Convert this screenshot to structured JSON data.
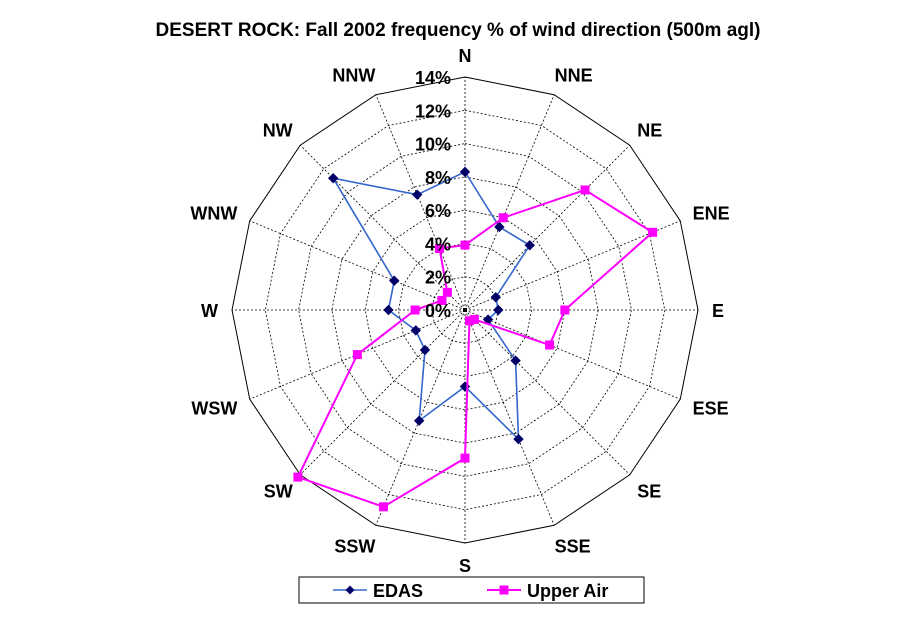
{
  "chart_data": {
    "type": "radar",
    "title": "DESERT ROCK: Fall 2002 frequency % of wind direction (500m agl)",
    "directions": [
      "N",
      "NNE",
      "NE",
      "ENE",
      "E",
      "ESE",
      "SE",
      "SSE",
      "S",
      "SSW",
      "SW",
      "WSW",
      "W",
      "WNW",
      "NW",
      "NNW"
    ],
    "r_ticks": [
      "0%",
      "2%",
      "4%",
      "6%",
      "8%",
      "10%",
      "12%",
      "14%"
    ],
    "r_range": [
      0,
      14
    ],
    "grid": "dashed",
    "legend_position": "bottom",
    "series": [
      {
        "name": "EDAS",
        "color": "#3366cc",
        "marker": "diamond",
        "marker_color": "#000066",
        "values": [
          8.3,
          5.4,
          5.5,
          2.0,
          2.0,
          1.5,
          4.3,
          8.4,
          4.6,
          7.2,
          3.4,
          3.2,
          4.6,
          4.6,
          11.2,
          7.5
        ]
      },
      {
        "name": "Upper Air",
        "color": "#ff00ff",
        "marker": "square",
        "marker_color": "#ff00ff",
        "values": [
          3.9,
          6.0,
          10.2,
          12.2,
          6.0,
          5.5,
          0.8,
          0.7,
          8.9,
          12.8,
          14.2,
          7.0,
          3.0,
          1.5,
          1.5,
          4.0
        ]
      }
    ]
  }
}
